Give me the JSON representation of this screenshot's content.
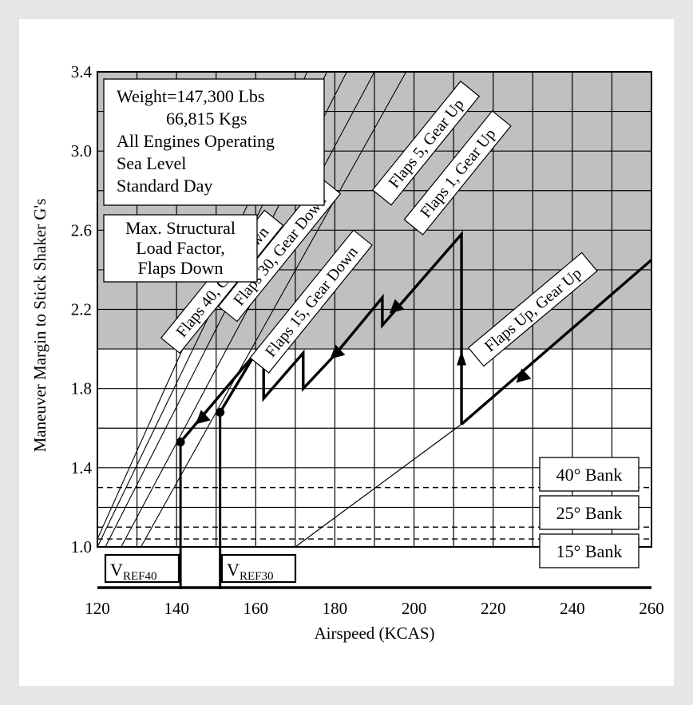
{
  "chart_data": {
    "type": "line",
    "title": "",
    "xlabel": "Airspeed (KCAS)",
    "ylabel": "Maneuver Margin to Stick Shaker G's",
    "xlim": [
      120,
      260
    ],
    "ylim": [
      1.0,
      3.4
    ],
    "x_ticks": [
      120,
      140,
      160,
      180,
      200,
      220,
      240,
      260
    ],
    "y_ticks": [
      1.0,
      1.4,
      1.8,
      2.2,
      2.6,
      3.0,
      3.4
    ],
    "x_tick_labels": [
      "120",
      "140",
      "160",
      "180",
      "200",
      "220",
      "240",
      "260"
    ],
    "y_tick_labels": [
      "1.0",
      "1.4",
      "1.8",
      "2.2",
      "2.6",
      "3.0",
      "3.4"
    ],
    "shaded_region": {
      "y_from": 2.0,
      "y_to": 3.4,
      "color": "#c0c0c0"
    },
    "info_box": [
      "Weight=147,300 Lbs",
      "66,815 Kgs",
      "All Engines Operating",
      "Sea Level",
      "Standard Day"
    ],
    "shaded_label": [
      "Max. Structural",
      "Load Factor,",
      "Flaps Down"
    ],
    "series": [
      {
        "name": "Flaps 40, Gear Down",
        "x": [
          120,
          173
        ],
        "y": [
          1.04,
          3.4
        ]
      },
      {
        "name": "Flaps 30, Gear Down",
        "x": [
          120,
          178
        ],
        "y": [
          1.0,
          3.4
        ]
      },
      {
        "name": "Flaps 15, Gear Down",
        "x": [
          122,
          183
        ],
        "y": [
          1.0,
          3.4
        ]
      },
      {
        "name": "Flaps 5, Gear Up",
        "x": [
          126,
          190
        ],
        "y": [
          1.0,
          3.4
        ]
      },
      {
        "name": "Flaps 1, Gear Up",
        "x": [
          131,
          198
        ],
        "y": [
          1.0,
          3.4
        ]
      },
      {
        "name": "Flaps Up, Gear Up",
        "x": [
          170,
          212,
          260
        ],
        "y": [
          1.0,
          1.62,
          2.45
        ]
      }
    ],
    "maneuver_path": {
      "x": [
        212,
        212,
        192,
        192,
        180,
        172,
        172,
        162,
        162,
        160,
        141
      ],
      "y": [
        1.62,
        2.58,
        2.12,
        2.26,
        1.97,
        1.8,
        1.98,
        1.75,
        2.02,
        1.98,
        1.53
      ]
    },
    "branch_path": {
      "x": [
        151,
        160
      ],
      "y": [
        1.68,
        1.98
      ]
    },
    "points": [
      {
        "x": 141,
        "y": 1.53
      },
      {
        "x": 151,
        "y": 1.68
      }
    ],
    "arrows": [
      {
        "x": 212,
        "y": 1.95,
        "dir": "up"
      },
      {
        "x": 181,
        "y": 1.99,
        "dir": "down-left"
      },
      {
        "x": 196,
        "y": 2.22,
        "dir": "down-left"
      },
      {
        "x": 147,
        "y": 1.66,
        "dir": "down-left"
      },
      {
        "x": 228,
        "y": 1.87,
        "dir": "down-left"
      }
    ],
    "bank_lines": [
      {
        "label": "40° Bank",
        "y": 1.3
      },
      {
        "label": "25° Bank",
        "y": 1.1
      },
      {
        "label": "15° Bank",
        "y": 1.04
      }
    ],
    "vref": [
      {
        "label": "V",
        "sub": "REF40",
        "x": 141
      },
      {
        "label": "V",
        "sub": "REF30",
        "x": 151
      }
    ]
  }
}
